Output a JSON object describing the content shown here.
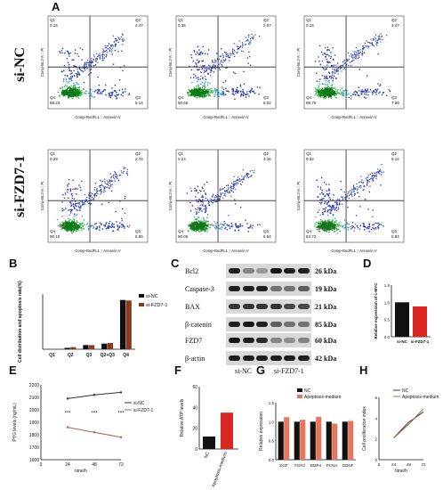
{
  "panels": {
    "A": "A",
    "B": "B",
    "C": "C",
    "D": "D",
    "E": "E",
    "F": "F",
    "G": "G",
    "H": "H"
  },
  "flow": {
    "row_labels": [
      "si-NC",
      "si-FZD7-1"
    ],
    "x_axis_label": "Comp-RedFL1 :: Annexin-V",
    "y_axis_label": "Comp-BL2-A :: PI",
    "quadrants": [
      "Q1",
      "Q2",
      "Q3",
      "Q4"
    ],
    "plots": [
      {
        "q1": "0.16",
        "q2": "2.47",
        "q3": "9.14",
        "q4": "88.23"
      },
      {
        "q1": "0.35",
        "q2": "2.97",
        "q3": "6.02",
        "q4": "90.66"
      },
      {
        "q1": "0.16",
        "q2": "3.47",
        "q3": "7.59",
        "q4": "88.75"
      },
      {
        "q1": "0.29",
        "q2": "2.76",
        "q3": "6.85",
        "q4": "90.10"
      },
      {
        "q1": "0.24",
        "q2": "3.16",
        "q3": "6.54",
        "q4": "90.06"
      },
      {
        "q1": "0.32",
        "q2": "9.12",
        "q3": "5.84",
        "q4": "84.72"
      }
    ]
  },
  "western": {
    "proteins": [
      "Bcl2",
      "Caspase-3",
      "BAX",
      "β-catenin",
      "FZD7",
      "β-actin"
    ],
    "kda": [
      "26 kDa",
      "19 kDa",
      "21 kDa",
      "85 kDa",
      "60 kDa",
      "42 kDa"
    ],
    "lanes": [
      "si-NC",
      "si-FZD7-1"
    ]
  },
  "chart_data": [
    {
      "type": "bar",
      "ylabel": "Cell distribution and apoptosis rate(%)",
      "categories": [
        "Q1",
        "Q2",
        "Q3",
        "Q2+Q3",
        "Q4"
      ],
      "series": [
        {
          "name": "si-NC",
          "values": [
            0.2,
            2.6,
            7.6,
            10.2,
            89.2
          ]
        },
        {
          "name": "si-FZD7-1",
          "values": [
            0.3,
            3.8,
            7.4,
            11.2,
            88.3
          ]
        }
      ],
      "ylim": [
        0,
        100
      ]
    },
    {
      "type": "bar",
      "ylabel": "Relative expression of c-MYC",
      "categories": [
        "si-NC",
        "si-FZD7-1"
      ],
      "values": [
        1.0,
        0.88
      ],
      "ylim": [
        0,
        1.5
      ],
      "yticks": [
        "0.0",
        "0.5",
        "1.0",
        "1.5"
      ]
    },
    {
      "type": "line",
      "ylabel": "PYG levels (ng/mL)",
      "xlabel": "time/h",
      "x": [
        24,
        48,
        72
      ],
      "xticks": [
        "0",
        "24",
        "48",
        "72"
      ],
      "yticks": [
        "1600",
        "1700",
        "1800",
        "1900",
        "2000",
        "2100",
        "2200"
      ],
      "ylim": [
        1600,
        2200
      ],
      "series": [
        {
          "name": "si-NC",
          "values": [
            2090,
            2120,
            2140
          ]
        },
        {
          "name": "si-FZD7-1",
          "values": [
            1860,
            1820,
            1780
          ]
        }
      ],
      "annotations": [
        "***",
        "***",
        "***"
      ]
    },
    {
      "type": "bar",
      "ylabel": "Relative ATP levels",
      "categories": [
        "NC",
        "Apoptosis-medium"
      ],
      "values": [
        12,
        35
      ],
      "ylim": [
        0,
        60
      ],
      "yticks": [
        "0",
        "20",
        "40",
        "60"
      ]
    },
    {
      "type": "bar",
      "ylabel": "Relative expression",
      "categories": [
        "EGF",
        "FGF3",
        "BMP4",
        "PCNA",
        "GDNF"
      ],
      "series": [
        {
          "name": "NC",
          "values": [
            1.0,
            1.0,
            1.0,
            1.0,
            1.0
          ]
        },
        {
          "name": "Apoptosis-medium",
          "values": [
            1.12,
            1.05,
            1.13,
            0.95,
            1.02
          ]
        }
      ],
      "ylim": [
        0,
        1.5
      ],
      "yticks": [
        "0.0",
        "0.5",
        "1.0",
        "1.5"
      ]
    },
    {
      "type": "line",
      "ylabel": "Cell proliferation index",
      "xlabel": "time/h",
      "x": [
        24,
        48,
        72
      ],
      "xticks": [
        "0",
        "24",
        "48",
        "72"
      ],
      "yticks": [
        "0",
        "2",
        "4",
        "6"
      ],
      "ylim": [
        0,
        6
      ],
      "series": [
        {
          "name": "NC",
          "values": [
            2.1,
            3.6,
            4.6
          ]
        },
        {
          "name": "Apoptosis-medium",
          "values": [
            2.1,
            3.4,
            4.9
          ]
        }
      ]
    }
  ],
  "colors": {
    "dark": "#111111",
    "brown": "#8b3a1f",
    "salmon": "#e7765f",
    "red": "#d8251d",
    "line_nc": "#333333",
    "line_brown": "#b0624a"
  }
}
